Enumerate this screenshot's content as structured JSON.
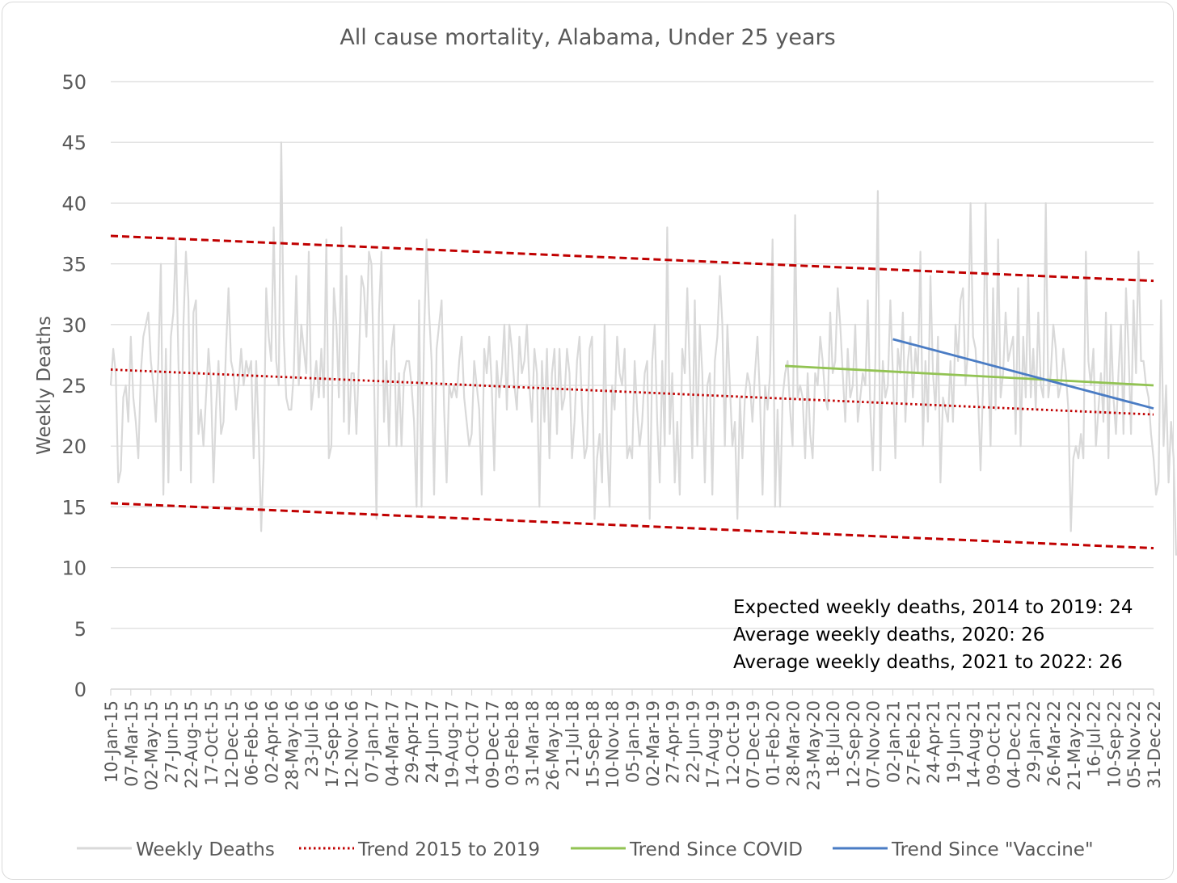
{
  "chart_data": {
    "type": "line",
    "title": "All cause mortality, Alabama, Under 25 years",
    "ylabel": "Weekly Deaths",
    "xlabel": "",
    "ylim": [
      0,
      50
    ],
    "yticks": [
      0,
      5,
      10,
      15,
      20,
      25,
      30,
      35,
      40,
      45,
      50
    ],
    "grid": "horizontal",
    "legend_position": "bottom",
    "x_range": [
      "2015-01-10",
      "2022-12-31"
    ],
    "x_tick_labels": [
      "10-Jan-15",
      "07-Mar-15",
      "02-May-15",
      "27-Jun-15",
      "22-Aug-15",
      "17-Oct-15",
      "12-Dec-15",
      "06-Feb-16",
      "02-Apr-16",
      "28-May-16",
      "23-Jul-16",
      "17-Sep-16",
      "12-Nov-16",
      "07-Jan-17",
      "04-Mar-17",
      "29-Apr-17",
      "24-Jun-17",
      "19-Aug-17",
      "14-Oct-17",
      "09-Dec-17",
      "03-Feb-18",
      "31-Mar-18",
      "26-May-18",
      "21-Jul-18",
      "15-Sep-18",
      "10-Nov-18",
      "05-Jan-19",
      "02-Mar-19",
      "27-Apr-19",
      "22-Jun-19",
      "17-Aug-19",
      "12-Oct-19",
      "07-Dec-19",
      "01-Feb-20",
      "28-Mar-20",
      "23-May-20",
      "18-Jul-20",
      "12-Sep-20",
      "07-Nov-20",
      "02-Jan-21",
      "27-Feb-21",
      "24-Apr-21",
      "19-Jun-21",
      "14-Aug-21",
      "09-Oct-21",
      "04-Dec-21",
      "29-Jan-22",
      "26-Mar-22",
      "21-May-22",
      "16-Jul-22",
      "10-Sep-22",
      "05-Nov-22",
      "31-Dec-22"
    ],
    "series": [
      {
        "name": "Weekly Deaths",
        "color": "#d9d9d9",
        "style": "solid",
        "x_start": "2015-01-10",
        "interval": "weekly",
        "values": [
          25,
          28,
          26,
          17,
          18,
          24,
          25,
          22,
          29,
          24,
          22,
          19,
          26,
          29,
          30,
          31,
          27,
          25,
          22,
          27,
          35,
          16,
          28,
          17,
          29,
          31,
          37,
          27,
          18,
          30,
          36,
          32,
          17,
          31,
          32,
          21,
          23,
          20,
          24,
          28,
          25,
          17,
          23,
          27,
          21,
          22,
          28,
          33,
          27,
          26,
          23,
          25,
          28,
          25,
          27,
          26,
          27,
          19,
          27,
          21,
          13,
          19,
          33,
          29,
          27,
          38,
          27,
          25,
          45,
          29,
          24,
          23,
          23,
          26,
          34,
          25,
          30,
          28,
          26,
          36,
          23,
          25,
          27,
          24,
          28,
          24,
          37,
          19,
          20,
          33,
          30,
          24,
          38,
          22,
          34,
          21,
          26,
          26,
          21,
          27,
          34,
          33,
          29,
          36,
          35,
          26,
          14,
          31,
          36,
          22,
          27,
          20,
          28,
          30,
          20,
          26,
          20,
          26,
          27,
          27,
          25,
          22,
          15,
          32,
          15,
          29,
          37,
          31,
          27,
          16,
          28,
          30,
          32,
          23,
          17,
          25,
          24,
          25,
          24,
          27,
          29,
          24,
          22,
          20,
          21,
          27,
          25,
          23,
          16,
          28,
          26,
          29,
          25,
          18,
          27,
          24,
          26,
          30,
          23,
          30,
          28,
          25,
          23,
          29,
          26,
          27,
          30,
          25,
          22,
          28,
          26,
          15,
          27,
          22,
          28,
          19,
          26,
          28,
          21,
          28,
          23,
          24,
          28,
          26,
          19,
          22,
          27,
          29,
          23,
          19,
          20,
          28,
          29,
          14,
          19,
          21,
          17,
          30,
          20,
          15,
          25,
          23,
          29,
          26,
          25,
          28,
          19,
          20,
          19,
          27,
          23,
          20,
          22,
          26,
          27,
          14,
          27,
          30,
          22,
          17,
          27,
          20,
          38,
          21,
          26,
          17,
          22,
          16,
          28,
          26,
          33,
          26,
          19,
          32,
          20,
          30,
          26,
          17,
          25,
          26,
          16,
          27,
          29,
          34,
          30,
          20,
          30,
          25,
          20,
          22,
          14,
          24,
          19,
          24,
          26,
          25,
          22,
          26,
          29,
          24,
          16,
          25,
          23,
          26,
          37,
          15,
          23,
          15,
          24,
          26,
          27,
          23,
          20,
          39,
          24,
          25,
          24,
          19,
          26,
          21,
          19,
          26,
          25,
          29,
          27,
          24,
          23,
          31,
          26,
          27,
          33,
          30,
          26,
          22,
          28,
          24,
          25,
          30,
          22,
          24,
          26,
          25,
          32,
          23,
          18,
          27,
          41,
          18,
          27,
          24,
          25,
          32,
          26,
          19,
          28,
          26,
          31,
          22,
          27,
          29,
          24,
          28,
          26,
          36,
          20,
          27,
          22,
          34,
          26,
          23,
          29,
          17,
          24,
          23,
          22,
          27,
          22,
          30,
          27,
          32,
          33,
          25,
          28,
          40,
          29,
          28,
          24,
          18,
          25,
          40,
          27,
          20,
          33,
          23,
          37,
          24,
          26,
          31,
          27,
          28,
          29,
          21,
          33,
          20,
          29,
          24,
          34,
          24,
          28,
          23,
          31,
          25,
          24,
          40,
          24,
          26,
          30,
          28,
          24,
          25,
          28,
          26,
          23,
          13,
          19,
          20,
          19,
          21,
          19,
          36,
          27,
          25,
          28,
          20,
          23,
          26,
          22,
          31,
          19,
          30,
          24,
          21,
          26,
          30,
          21,
          33,
          28,
          21,
          32,
          26,
          36,
          27,
          27,
          25,
          24,
          21,
          19,
          16,
          17,
          32,
          20,
          25,
          17,
          22,
          19,
          11
        ]
      },
      {
        "name": "Trend 2015 to 2019",
        "color": "#c00000",
        "style": "dotted",
        "x": [
          "2015-01-10",
          "2022-12-31"
        ],
        "values": [
          26.3,
          22.6
        ]
      },
      {
        "name": "Trend Since COVID",
        "color": "#92c353",
        "style": "solid",
        "x": [
          "2020-03-07",
          "2022-12-31"
        ],
        "values": [
          26.6,
          25.0
        ]
      },
      {
        "name": "Trend Since \"Vaccine\"",
        "color": "#4a7cc4",
        "style": "solid",
        "x": [
          "2021-01-02",
          "2022-12-31"
        ],
        "values": [
          28.8,
          23.1
        ]
      },
      {
        "color": "#c00000",
        "style": "dashed",
        "x": [
          "2015-01-10",
          "2022-12-31"
        ],
        "values": [
          37.3,
          33.6
        ]
      },
      {
        "color": "#c00000",
        "style": "dashed",
        "x": [
          "2015-01-10",
          "2022-12-31"
        ],
        "values": [
          15.3,
          11.6
        ]
      }
    ],
    "annotations": [
      "Expected weekly deaths, 2014 to 2019: 24",
      "Average weekly deaths, 2020: 26",
      "Average weekly deaths, 2021 to 2022: 26"
    ]
  }
}
